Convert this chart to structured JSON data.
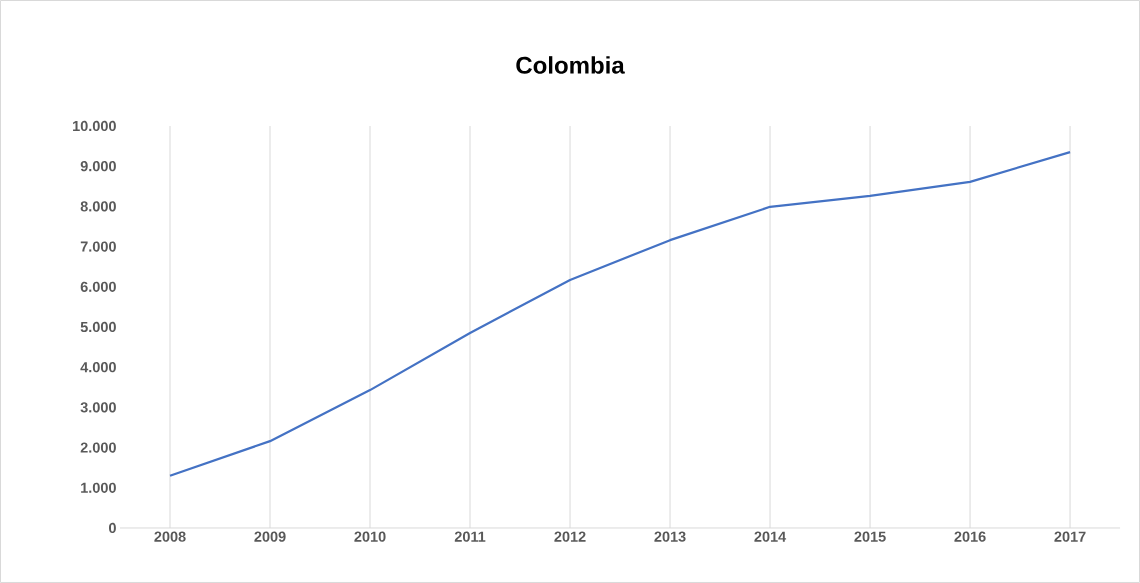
{
  "chart_data": {
    "type": "line",
    "title": "Colombia",
    "categories": [
      "2008",
      "2009",
      "2010",
      "2011",
      "2012",
      "2013",
      "2014",
      "2015",
      "2016",
      "2017"
    ],
    "series": [
      {
        "color": "#4472c4",
        "values": [
          1300,
          2160,
          3430,
          4850,
          6170,
          7160,
          7990,
          8260,
          8610,
          9350
        ]
      }
    ],
    "ylim": [
      0,
      10000
    ],
    "yticks": [
      {
        "value": 0,
        "label": "0"
      },
      {
        "value": 1000,
        "label": "1.000"
      },
      {
        "value": 2000,
        "label": "2.000"
      },
      {
        "value": 3000,
        "label": "3.000"
      },
      {
        "value": 4000,
        "label": "4.000"
      },
      {
        "value": 5000,
        "label": "5.000"
      },
      {
        "value": 6000,
        "label": "6.000"
      },
      {
        "value": 7000,
        "label": "7.000"
      },
      {
        "value": 8000,
        "label": "8.000"
      },
      {
        "value": 9000,
        "label": "9.000"
      },
      {
        "value": 10000,
        "label": "10.000"
      }
    ],
    "grid": "x",
    "legend": false,
    "marker": "none",
    "line_style": "solid"
  }
}
